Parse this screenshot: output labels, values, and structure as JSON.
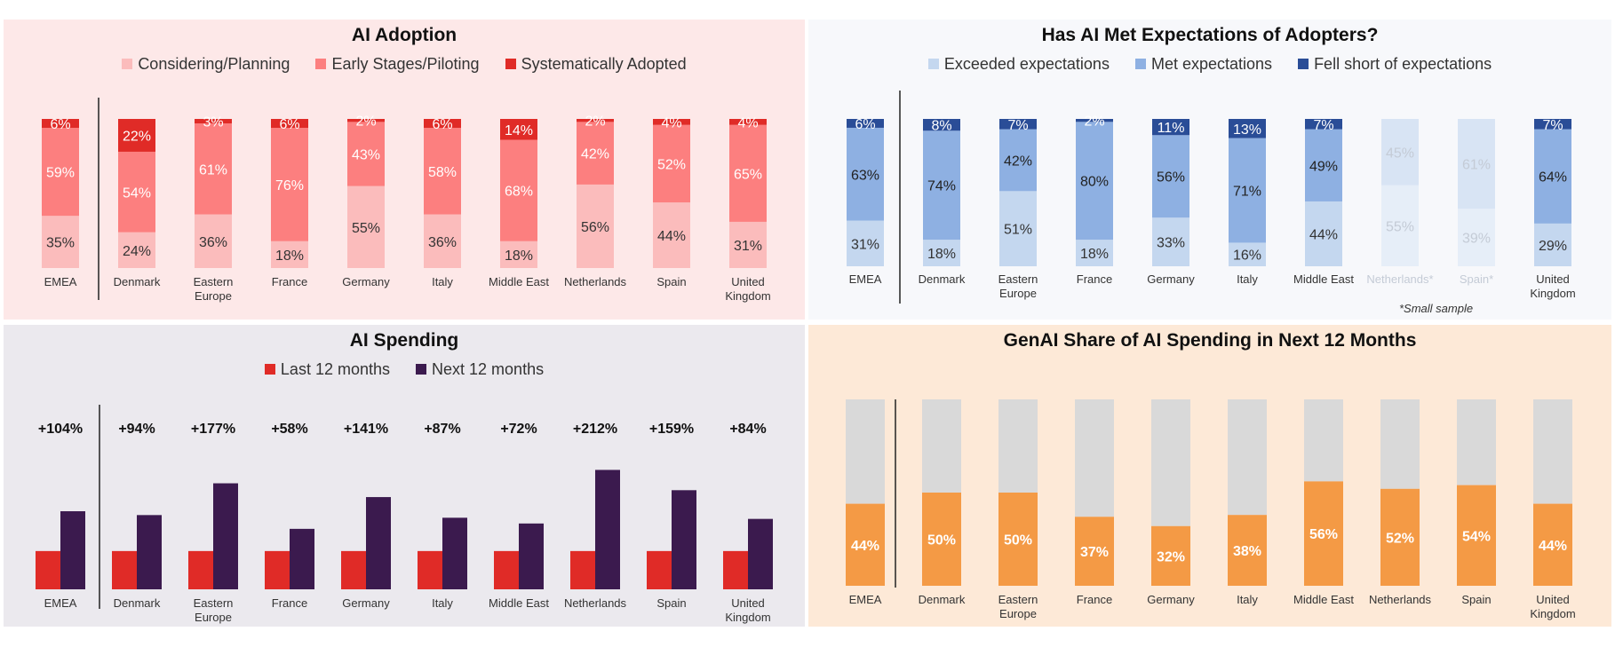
{
  "categories": [
    "EMEA",
    "Denmark",
    "Eastern Europe",
    "France",
    "Germany",
    "Italy",
    "Middle East",
    "Netherlands",
    "Spain",
    "United Kingdom"
  ],
  "adoption": {
    "title": "AI Adoption",
    "background": "#fde8e8",
    "legend": [
      "Considering/Planning",
      "Early Stages/Piloting",
      "Systematically Adopted"
    ],
    "colors": [
      "#fbbcbc",
      "#fc7f7f",
      "#e02b27"
    ],
    "label_colors": [
      "#333333",
      "#ffffff",
      "#ffffff"
    ],
    "chart_data": {
      "type": "bar",
      "stacked": true,
      "title": "AI Adoption",
      "categories": [
        "EMEA",
        "Denmark",
        "Eastern Europe",
        "France",
        "Germany",
        "Italy",
        "Middle East",
        "Netherlands",
        "Spain",
        "United Kingdom"
      ],
      "series": [
        {
          "name": "Considering/Planning",
          "values": [
            35,
            24,
            36,
            18,
            55,
            36,
            18,
            56,
            44,
            31
          ]
        },
        {
          "name": "Early Stages/Piloting",
          "values": [
            59,
            54,
            61,
            76,
            43,
            58,
            68,
            42,
            52,
            65
          ]
        },
        {
          "name": "Systematically Adopted",
          "values": [
            6,
            22,
            3,
            6,
            2,
            6,
            14,
            2,
            4,
            4
          ]
        }
      ],
      "ylim": [
        0,
        100
      ],
      "value_suffix": "%"
    }
  },
  "expectations": {
    "title": "Has AI Met Expectations of Adopters?",
    "background": "#f7f8fb",
    "legend": [
      "Exceeded expectations",
      "Met expectations",
      "Fell short of expectations"
    ],
    "colors": [
      "#c4d7ef",
      "#8eb0e2",
      "#2a4d97"
    ],
    "faded_colors": [
      "#e6eef8",
      "#d8e4f4",
      "#2a4d97"
    ],
    "label_colors": [
      "#333333",
      "#222222",
      "#ffffff"
    ],
    "faded_label_color": "#c4cbd6",
    "category_labels": [
      "EMEA",
      "Denmark",
      "Eastern Europe",
      "France",
      "Germany",
      "Italy",
      "Middle East",
      "Netherlands*",
      "Spain*",
      "United Kingdom"
    ],
    "faded_categories": [
      "Netherlands*",
      "Spain*"
    ],
    "footnote": "*Small sample",
    "chart_data": {
      "type": "bar",
      "stacked": true,
      "title": "Has AI Met Expectations of Adopters?",
      "categories": [
        "EMEA",
        "Denmark",
        "Eastern Europe",
        "France",
        "Germany",
        "Italy",
        "Middle East",
        "Netherlands*",
        "Spain*",
        "United Kingdom"
      ],
      "series": [
        {
          "name": "Exceeded expectations",
          "values": [
            31,
            18,
            51,
            18,
            33,
            16,
            44,
            55,
            39,
            29
          ]
        },
        {
          "name": "Met expectations",
          "values": [
            63,
            74,
            42,
            80,
            56,
            71,
            49,
            45,
            61,
            64
          ]
        },
        {
          "name": "Fell short of expectations",
          "values": [
            6,
            8,
            7,
            2,
            11,
            13,
            7,
            null,
            null,
            7
          ]
        }
      ],
      "ylim": [
        0,
        100
      ],
      "value_suffix": "%"
    }
  },
  "spending": {
    "title": "AI Spending",
    "background": "#ebe9ee",
    "legend": [
      "Last 12 months",
      "Next 12 months"
    ],
    "colors": [
      "#e02b27",
      "#3b1a4e"
    ],
    "change_labels": [
      "+104%",
      "+94%",
      "+177%",
      "+58%",
      "+141%",
      "+87%",
      "+72%",
      "+212%",
      "+159%",
      "+84%"
    ],
    "chart_data": {
      "type": "bar",
      "title": "AI Spending",
      "categories": [
        "EMEA",
        "Denmark",
        "Eastern Europe",
        "France",
        "Germany",
        "Italy",
        "Middle East",
        "Netherlands",
        "Spain",
        "United Kingdom"
      ],
      "series": [
        {
          "name": "Last 12 months",
          "values": [
            100,
            100,
            100,
            100,
            100,
            100,
            100,
            100,
            100,
            100
          ]
        },
        {
          "name": "Next 12 months",
          "values": [
            204,
            194,
            277,
            158,
            241,
            187,
            172,
            312,
            259,
            184
          ]
        }
      ],
      "annotations": [
        "+104%",
        "+94%",
        "+177%",
        "+58%",
        "+141%",
        "+87%",
        "+72%",
        "+212%",
        "+159%",
        "+84%"
      ],
      "ylim": [
        0,
        320
      ]
    }
  },
  "genai": {
    "title": "GenAI Share of AI Spending in Next 12 Months",
    "background": "#fde9d7",
    "colors": [
      "#f49a45",
      "#d9d9d9"
    ],
    "chart_data": {
      "type": "bar",
      "stacked": true,
      "title": "GenAI Share of AI Spending in Next 12 Months",
      "categories": [
        "EMEA",
        "Denmark",
        "Eastern Europe",
        "France",
        "Germany",
        "Italy",
        "Middle East",
        "Netherlands",
        "Spain",
        "United Kingdom"
      ],
      "values": [
        44,
        50,
        50,
        37,
        32,
        38,
        56,
        52,
        54,
        44
      ],
      "ylim": [
        0,
        100
      ],
      "value_suffix": "%"
    }
  }
}
